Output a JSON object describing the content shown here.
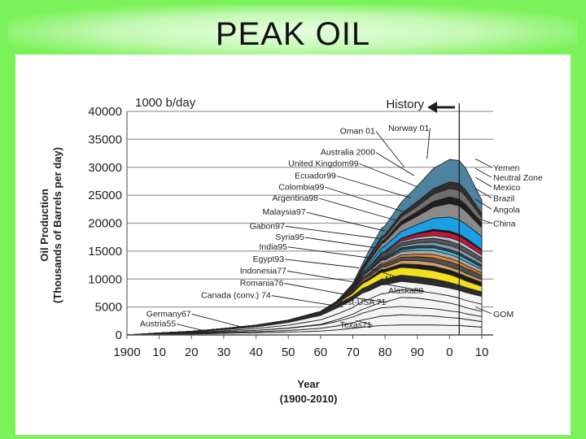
{
  "slide": {
    "title": "PEAK OIL"
  },
  "chart_data": {
    "type": "area",
    "title": "",
    "unit_label": "1000 b/day",
    "ylabel": "Oil Production",
    "ylabel_sub": "(Thousands of Barrels per day)",
    "xlabel": "Year",
    "xlabel_sub": "(1900-2010)",
    "history_label": "History",
    "history_line_year": 2003,
    "xlim": [
      1900,
      2010
    ],
    "ylim": [
      0,
      40000
    ],
    "x_ticks": [
      {
        "value": 1900,
        "label": "1900"
      },
      {
        "value": 1910,
        "label": "10"
      },
      {
        "value": 1920,
        "label": "20"
      },
      {
        "value": 1930,
        "label": "30"
      },
      {
        "value": 1940,
        "label": "40"
      },
      {
        "value": 1950,
        "label": "50"
      },
      {
        "value": 1960,
        "label": "60"
      },
      {
        "value": 1970,
        "label": "70"
      },
      {
        "value": 1980,
        "label": "80"
      },
      {
        "value": 1990,
        "label": "90"
      },
      {
        "value": 2000,
        "label": "0"
      },
      {
        "value": 2010,
        "label": "10"
      }
    ],
    "y_ticks": [
      {
        "value": 0,
        "label": "0"
      },
      {
        "value": 5000,
        "label": "5000"
      },
      {
        "value": 10000,
        "label": "10000"
      },
      {
        "value": 15000,
        "label": "15000"
      },
      {
        "value": 20000,
        "label": "20000"
      },
      {
        "value": 25000,
        "label": "25000"
      },
      {
        "value": 30000,
        "label": "30000"
      },
      {
        "value": 35000,
        "label": "35000"
      },
      {
        "value": 40000,
        "label": "40000"
      }
    ],
    "grid": true,
    "x": [
      1900,
      1910,
      1920,
      1930,
      1940,
      1950,
      1960,
      1965,
      1970,
      1973,
      1975,
      1979,
      1980,
      1985,
      1990,
      1995,
      2000,
      2003,
      2005,
      2010
    ],
    "layers": [
      {
        "color": "#f4f4f4",
        "values": [
          0,
          100,
          150,
          300,
          400,
          500,
          700,
          900,
          1200,
          1400,
          1500,
          1700,
          1700,
          1800,
          1800,
          1800,
          1700,
          1700,
          1600,
          1400
        ]
      },
      {
        "color": "#f4f4f4",
        "values": [
          0,
          50,
          100,
          150,
          200,
          300,
          500,
          700,
          1000,
          1300,
          1400,
          1700,
          1700,
          1800,
          1700,
          1600,
          1400,
          1300,
          1200,
          1000
        ]
      },
      {
        "color": "#f4f4f4",
        "values": [
          0,
          50,
          100,
          150,
          250,
          400,
          600,
          800,
          1000,
          1200,
          1300,
          1500,
          1500,
          1500,
          1400,
          1300,
          1200,
          1100,
          1000,
          900
        ]
      },
      {
        "color": "#f4f4f4",
        "values": [
          0,
          0,
          0,
          0,
          0,
          50,
          100,
          300,
          500,
          700,
          800,
          1000,
          1000,
          1600,
          1700,
          1500,
          1400,
          1200,
          1100,
          900
        ]
      },
      {
        "color": "#f4f4f4",
        "values": [
          0,
          50,
          100,
          150,
          300,
          500,
          800,
          1000,
          1200,
          1400,
          1400,
          1500,
          1500,
          1400,
          1300,
          1300,
          1300,
          1300,
          1300,
          1300
        ]
      },
      {
        "color": "#f4f4f4",
        "values": [
          0,
          50,
          100,
          200,
          300,
          500,
          800,
          1100,
          1400,
          1500,
          1500,
          1600,
          1600,
          1500,
          1400,
          1400,
          1400,
          1400,
          1400,
          1400
        ]
      },
      {
        "color": "#2c2c2c",
        "values": [
          0,
          50,
          100,
          200,
          300,
          400,
          500,
          600,
          700,
          800,
          900,
          1000,
          1000,
          1100,
          1100,
          1100,
          1000,
          900,
          900,
          800
        ]
      },
      {
        "color": "#f2e01c",
        "values": [
          0,
          0,
          0,
          0,
          0,
          0,
          50,
          200,
          500,
          900,
          1000,
          1300,
          1300,
          1400,
          1500,
          1500,
          1400,
          1300,
          1200,
          1000
        ]
      },
      {
        "color": "#1c1c1c",
        "values": [
          0,
          0,
          0,
          0,
          0,
          0,
          50,
          100,
          200,
          300,
          350,
          450,
          450,
          600,
          700,
          800,
          800,
          800,
          800,
          700
        ]
      },
      {
        "color": "#cfa06a",
        "values": [
          0,
          0,
          0,
          0,
          0,
          0,
          50,
          100,
          200,
          300,
          300,
          400,
          400,
          600,
          700,
          700,
          600,
          600,
          550,
          500
        ]
      },
      {
        "color": "#4f4f4f",
        "values": [
          0,
          0,
          0,
          0,
          0,
          0,
          50,
          100,
          200,
          300,
          400,
          500,
          500,
          600,
          700,
          800,
          900,
          900,
          900,
          800
        ]
      },
      {
        "color": "#ef8a2c",
        "values": [
          0,
          0,
          0,
          0,
          0,
          0,
          0,
          0,
          50,
          100,
          150,
          250,
          250,
          400,
          450,
          600,
          600,
          600,
          500,
          400
        ]
      },
      {
        "color": "#a8a8a8",
        "values": [
          0,
          0,
          0,
          0,
          0,
          0,
          0,
          50,
          100,
          300,
          400,
          500,
          500,
          600,
          700,
          700,
          700,
          700,
          700,
          600
        ]
      },
      {
        "color": "#3dc0e8",
        "values": [
          0,
          0,
          0,
          0,
          0,
          0,
          0,
          0,
          0,
          0,
          0,
          100,
          150,
          300,
          400,
          500,
          500,
          500,
          500,
          400
        ]
      },
      {
        "color": "#3c3c3c",
        "values": [
          0,
          0,
          0,
          0,
          0,
          0,
          0,
          0,
          50,
          150,
          200,
          300,
          300,
          400,
          400,
          400,
          400,
          400,
          400,
          400
        ]
      },
      {
        "color": "#7a9aac",
        "values": [
          0,
          0,
          0,
          0,
          0,
          0,
          0,
          0,
          0,
          0,
          50,
          150,
          200,
          400,
          500,
          600,
          700,
          700,
          700,
          600
        ]
      },
      {
        "color": "#555555",
        "values": [
          0,
          0,
          0,
          0,
          0,
          0,
          0,
          50,
          200,
          300,
          400,
          500,
          500,
          500,
          600,
          700,
          800,
          800,
          800,
          700
        ]
      },
      {
        "color": "#b8c4cc",
        "values": [
          0,
          0,
          0,
          0,
          0,
          0,
          0,
          0,
          0,
          50,
          100,
          200,
          200,
          300,
          400,
          500,
          600,
          600,
          600,
          500
        ]
      },
      {
        "color": "#c8143c",
        "values": [
          0,
          0,
          0,
          0,
          0,
          0,
          0,
          0,
          0,
          0,
          0,
          100,
          200,
          400,
          600,
          800,
          900,
          900,
          900,
          700
        ]
      },
      {
        "color": "#111111",
        "values": [
          0,
          0,
          0,
          0,
          0,
          0,
          0,
          0,
          0,
          0,
          0,
          0,
          50,
          100,
          200,
          300,
          300,
          300,
          300,
          300
        ]
      },
      {
        "color": "#1a9fe4",
        "values": [
          0,
          0,
          0,
          0,
          0,
          0,
          0,
          0,
          100,
          300,
          500,
          800,
          900,
          1200,
          1500,
          2000,
          2500,
          2600,
          2500,
          2300
        ]
      },
      {
        "color": "#8a8a8a",
        "values": [
          0,
          0,
          0,
          0,
          0,
          0,
          0,
          0,
          100,
          300,
          500,
          800,
          800,
          1200,
          1500,
          2000,
          2400,
          2500,
          2300,
          1600
        ]
      },
      {
        "color": "#1e1e1e",
        "values": [
          0,
          0,
          0,
          0,
          0,
          0,
          0,
          0,
          100,
          200,
          300,
          400,
          400,
          600,
          800,
          1000,
          1200,
          1200,
          1200,
          800
        ]
      },
      {
        "color": "#6f6f6f",
        "values": [
          0,
          0,
          0,
          0,
          0,
          0,
          0,
          0,
          100,
          200,
          300,
          500,
          500,
          800,
          1000,
          1300,
          1500,
          1600,
          1500,
          1000
        ]
      },
      {
        "color": "#2f2f2f",
        "values": [
          0,
          0,
          0,
          0,
          0,
          0,
          0,
          0,
          100,
          200,
          300,
          400,
          400,
          600,
          800,
          1000,
          1200,
          1200,
          1100,
          700
        ]
      },
      {
        "color": "#4d83a0",
        "values": [
          0,
          0,
          0,
          0,
          0,
          0,
          0,
          0,
          200,
          500,
          1000,
          1500,
          1500,
          2000,
          2800,
          3600,
          4000,
          4100,
          3900,
          2400
        ]
      }
    ],
    "series_labels": [
      {
        "text": "Germany67",
        "label_year": 1906,
        "label_value": 3300,
        "anchor_year": 1935,
        "anchor_value": 1500
      },
      {
        "text": "Austria55",
        "label_year": 1904,
        "label_value": 1500,
        "anchor_year": 1925,
        "anchor_value": 600
      },
      {
        "text": "Canada (conv.) 74",
        "label_year": 1923,
        "label_value": 6600,
        "anchor_year": 1967,
        "anchor_value": 5000
      },
      {
        "text": "Romania76",
        "label_year": 1935,
        "label_value": 8800,
        "anchor_year": 1968,
        "anchor_value": 7200
      },
      {
        "text": "Indonesia77",
        "label_year": 1935,
        "label_value": 11000,
        "anchor_year": 1970,
        "anchor_value": 9500
      },
      {
        "text": "Egypt93",
        "label_year": 1939,
        "label_value": 13100,
        "anchor_year": 1972,
        "anchor_value": 12000
      },
      {
        "text": "India95",
        "label_year": 1941,
        "label_value": 15300,
        "anchor_year": 1975,
        "anchor_value": 13800
      },
      {
        "text": "Syria95",
        "label_year": 1946,
        "label_value": 17000,
        "anchor_year": 1977,
        "anchor_value": 15600
      },
      {
        "text": "Gabon97",
        "label_year": 1938,
        "label_value": 19000,
        "anchor_year": 1979,
        "anchor_value": 17200
      },
      {
        "text": "Malaysia97",
        "label_year": 1942,
        "label_value": 21500,
        "anchor_year": 1980,
        "anchor_value": 18600
      },
      {
        "text": "Argentina98",
        "label_year": 1945,
        "label_value": 24000,
        "anchor_year": 1984,
        "anchor_value": 20400
      },
      {
        "text": "Colombia99",
        "label_year": 1947,
        "label_value": 26000,
        "anchor_year": 1986,
        "anchor_value": 22000
      },
      {
        "text": "Ecuador99",
        "label_year": 1952,
        "label_value": 28000,
        "anchor_year": 1988,
        "anchor_value": 24500
      },
      {
        "text": "United Kingdom99",
        "label_year": 1950,
        "label_value": 30200,
        "anchor_year": 1990,
        "anchor_value": 26500
      },
      {
        "text": "Australia 2000",
        "label_year": 1960,
        "label_value": 32200,
        "anchor_year": 1989,
        "anchor_value": 28500
      },
      {
        "text": "Oman 01",
        "label_year": 1966,
        "label_value": 36000,
        "anchor_year": 1986,
        "anchor_value": 30000
      },
      {
        "text": "Norway 01",
        "label_year": 1981,
        "label_value": 36500,
        "anchor_year": 1993,
        "anchor_value": 31500
      },
      {
        "text": "NGL",
        "label_year": 1980,
        "label_value": 9500,
        "anchor_year": 1976,
        "anchor_value": 11800
      },
      {
        "text": "Alaska88",
        "label_year": 1981,
        "label_value": 7400,
        "anchor_year": 1977,
        "anchor_value": 9400
      },
      {
        "text": "Rest-USA 71",
        "label_year": 1965,
        "label_value": 5400,
        "anchor_year": 1971,
        "anchor_value": 6600
      },
      {
        "text": "Texas71",
        "label_year": 1966,
        "label_value": 1300,
        "anchor_year": 1971,
        "anchor_value": 2600
      }
    ],
    "right_labels": [
      {
        "text": "Yemen",
        "label_value": 30000,
        "anchor_value": 31500
      },
      {
        "text": "Neutral Zone",
        "label_value": 28200,
        "anchor_value": 29800
      },
      {
        "text": "Mexico",
        "label_value": 26500,
        "anchor_value": 28200
      },
      {
        "text": "Brazil",
        "label_value": 24500,
        "anchor_value": 26200
      },
      {
        "text": "Angola",
        "label_value": 22500,
        "anchor_value": 24300
      },
      {
        "text": "China",
        "label_value": 20000,
        "anchor_value": 21000
      },
      {
        "text": "GOM",
        "label_value": 3800,
        "anchor_value": 5000
      }
    ]
  }
}
